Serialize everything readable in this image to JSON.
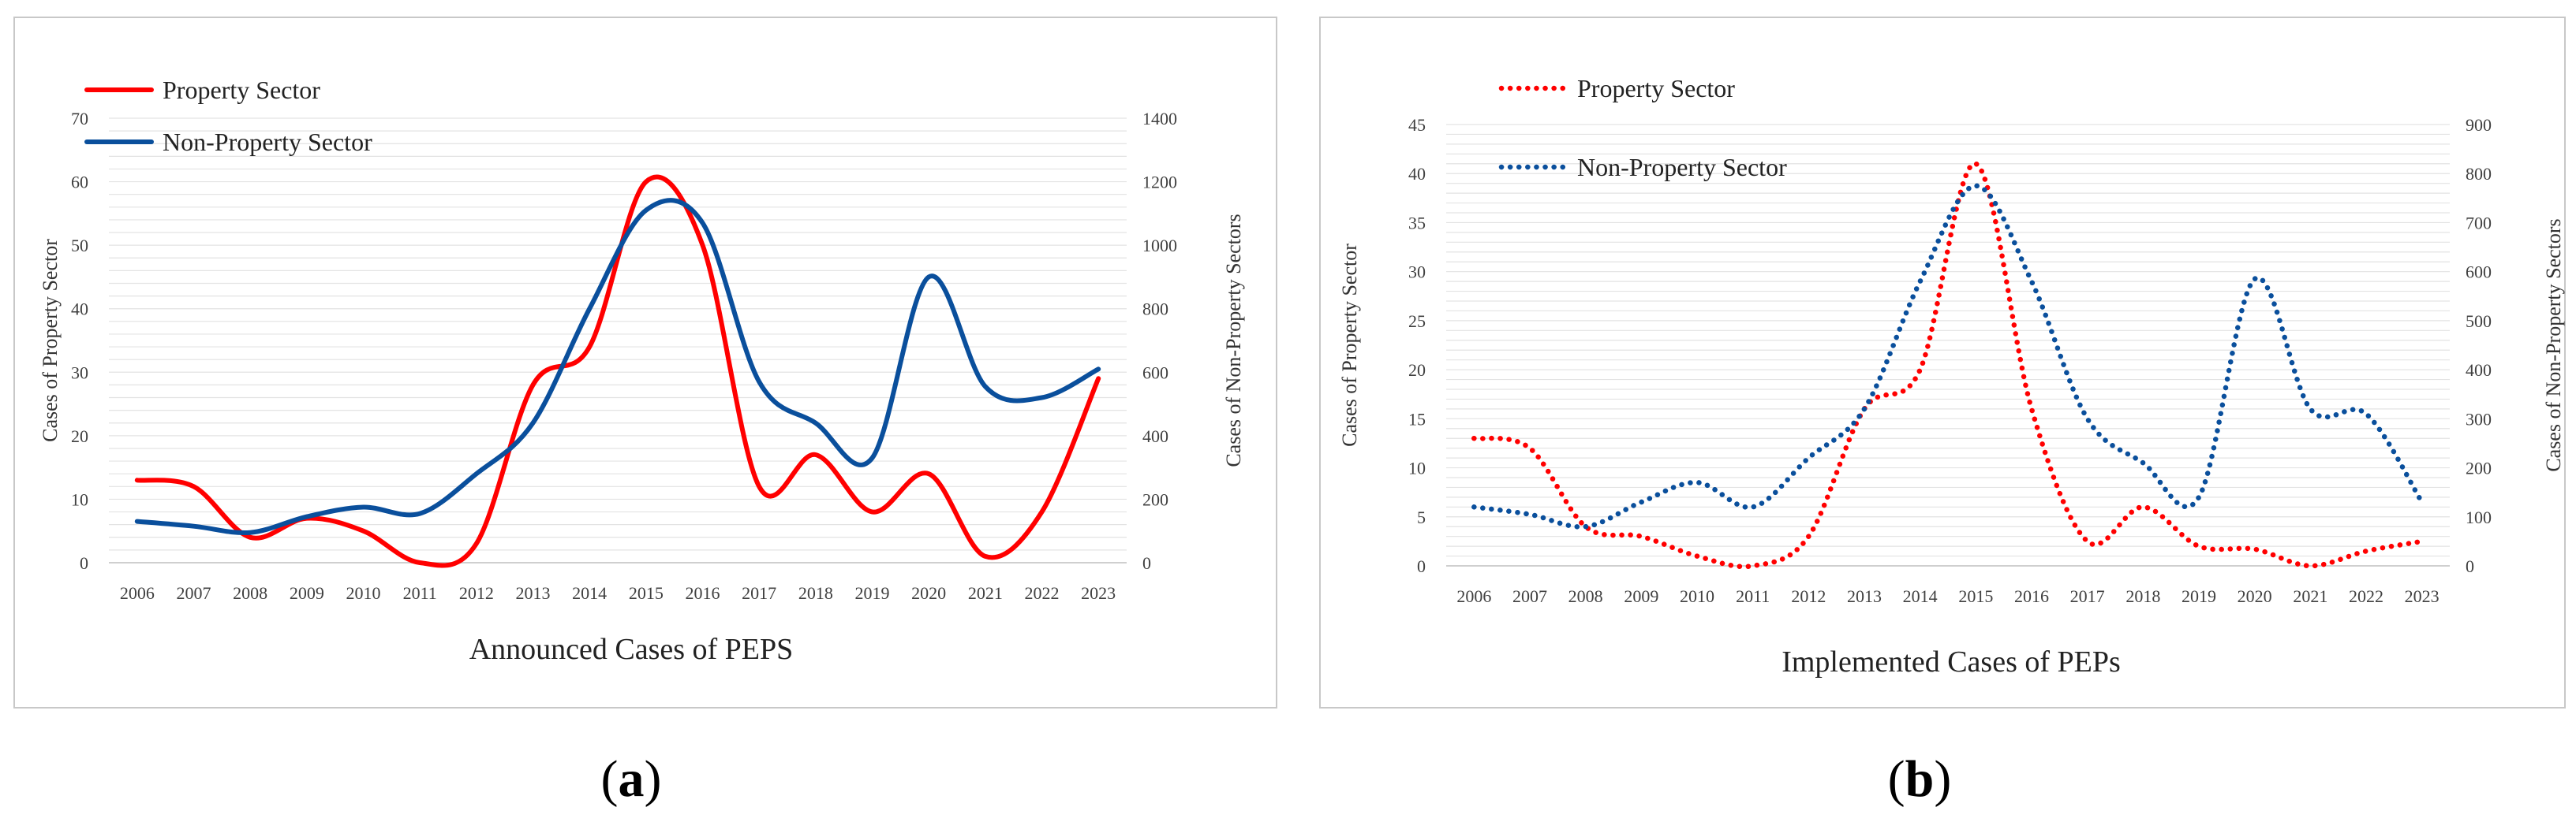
{
  "chart_data": [
    {
      "id": "a",
      "type": "line",
      "caption_open": "(",
      "caption_letter": "a",
      "caption_close": ")",
      "title": "Announced Cases of PEPS",
      "ylabel": "Cases of Property Sector",
      "y2label": "Cases of Non-Property Sectors",
      "categories": [
        "2006",
        "2007",
        "2008",
        "2009",
        "2010",
        "2011",
        "2012",
        "2013",
        "2014",
        "2015",
        "2016",
        "2017",
        "2018",
        "2019",
        "2020",
        "2021",
        "2022",
        "2023"
      ],
      "ylim": [
        0,
        70
      ],
      "yticks": [
        0,
        10,
        20,
        30,
        40,
        50,
        60,
        70
      ],
      "y2lim": [
        0,
        1400
      ],
      "y2ticks": [
        0,
        200,
        400,
        600,
        800,
        1000,
        1200,
        1400
      ],
      "grid": true,
      "legend_position": "top-left",
      "series": [
        {
          "name": "Property Sector",
          "axis": "left",
          "style": "solid",
          "color": "#ff0000",
          "values": [
            13,
            12,
            4,
            7,
            5,
            0,
            3,
            28,
            34,
            60,
            50,
            12,
            17,
            8,
            14,
            1,
            8,
            29
          ]
        },
        {
          "name": "Non-Property Sector",
          "axis": "right",
          "style": "solid",
          "color": "#0a4f9c",
          "values": [
            130,
            115,
            95,
            145,
            175,
            155,
            280,
            440,
            800,
            1110,
            1070,
            570,
            440,
            330,
            900,
            555,
            520,
            610
          ]
        }
      ]
    },
    {
      "id": "b",
      "type": "line",
      "caption_open": "(",
      "caption_letter": "b",
      "caption_close": ")",
      "title": "Implemented Cases of PEPs",
      "ylabel": "Cases of Property Sector",
      "y2label": "Cases of Non-Property Sectors",
      "categories": [
        "2006",
        "2007",
        "2008",
        "2009",
        "2010",
        "2011",
        "2012",
        "2013",
        "2014",
        "2015",
        "2016",
        "2017",
        "2018",
        "2019",
        "2020",
        "2021",
        "2022",
        "2023"
      ],
      "ylim": [
        0,
        45
      ],
      "yticks": [
        0,
        5,
        10,
        15,
        20,
        25,
        30,
        35,
        40,
        45
      ],
      "y2lim": [
        0,
        900
      ],
      "y2ticks": [
        0,
        100,
        200,
        300,
        400,
        500,
        600,
        700,
        800,
        900
      ],
      "grid": true,
      "legend_position": "top-left",
      "series": [
        {
          "name": "Property Sector",
          "axis": "left",
          "style": "dotted",
          "color": "#ff0000",
          "values": [
            13,
            12,
            4,
            3,
            1,
            0,
            3,
            16,
            20,
            41,
            16,
            2.5,
            6,
            2,
            1.7,
            0,
            1.5,
            2.5
          ]
        },
        {
          "name": "Non-Property Sector",
          "axis": "right",
          "style": "dotted",
          "color": "#0a4f9c",
          "values": [
            120,
            105,
            80,
            130,
            170,
            120,
            220,
            320,
            580,
            775,
            580,
            300,
            210,
            140,
            585,
            320,
            310,
            130
          ]
        }
      ]
    }
  ]
}
